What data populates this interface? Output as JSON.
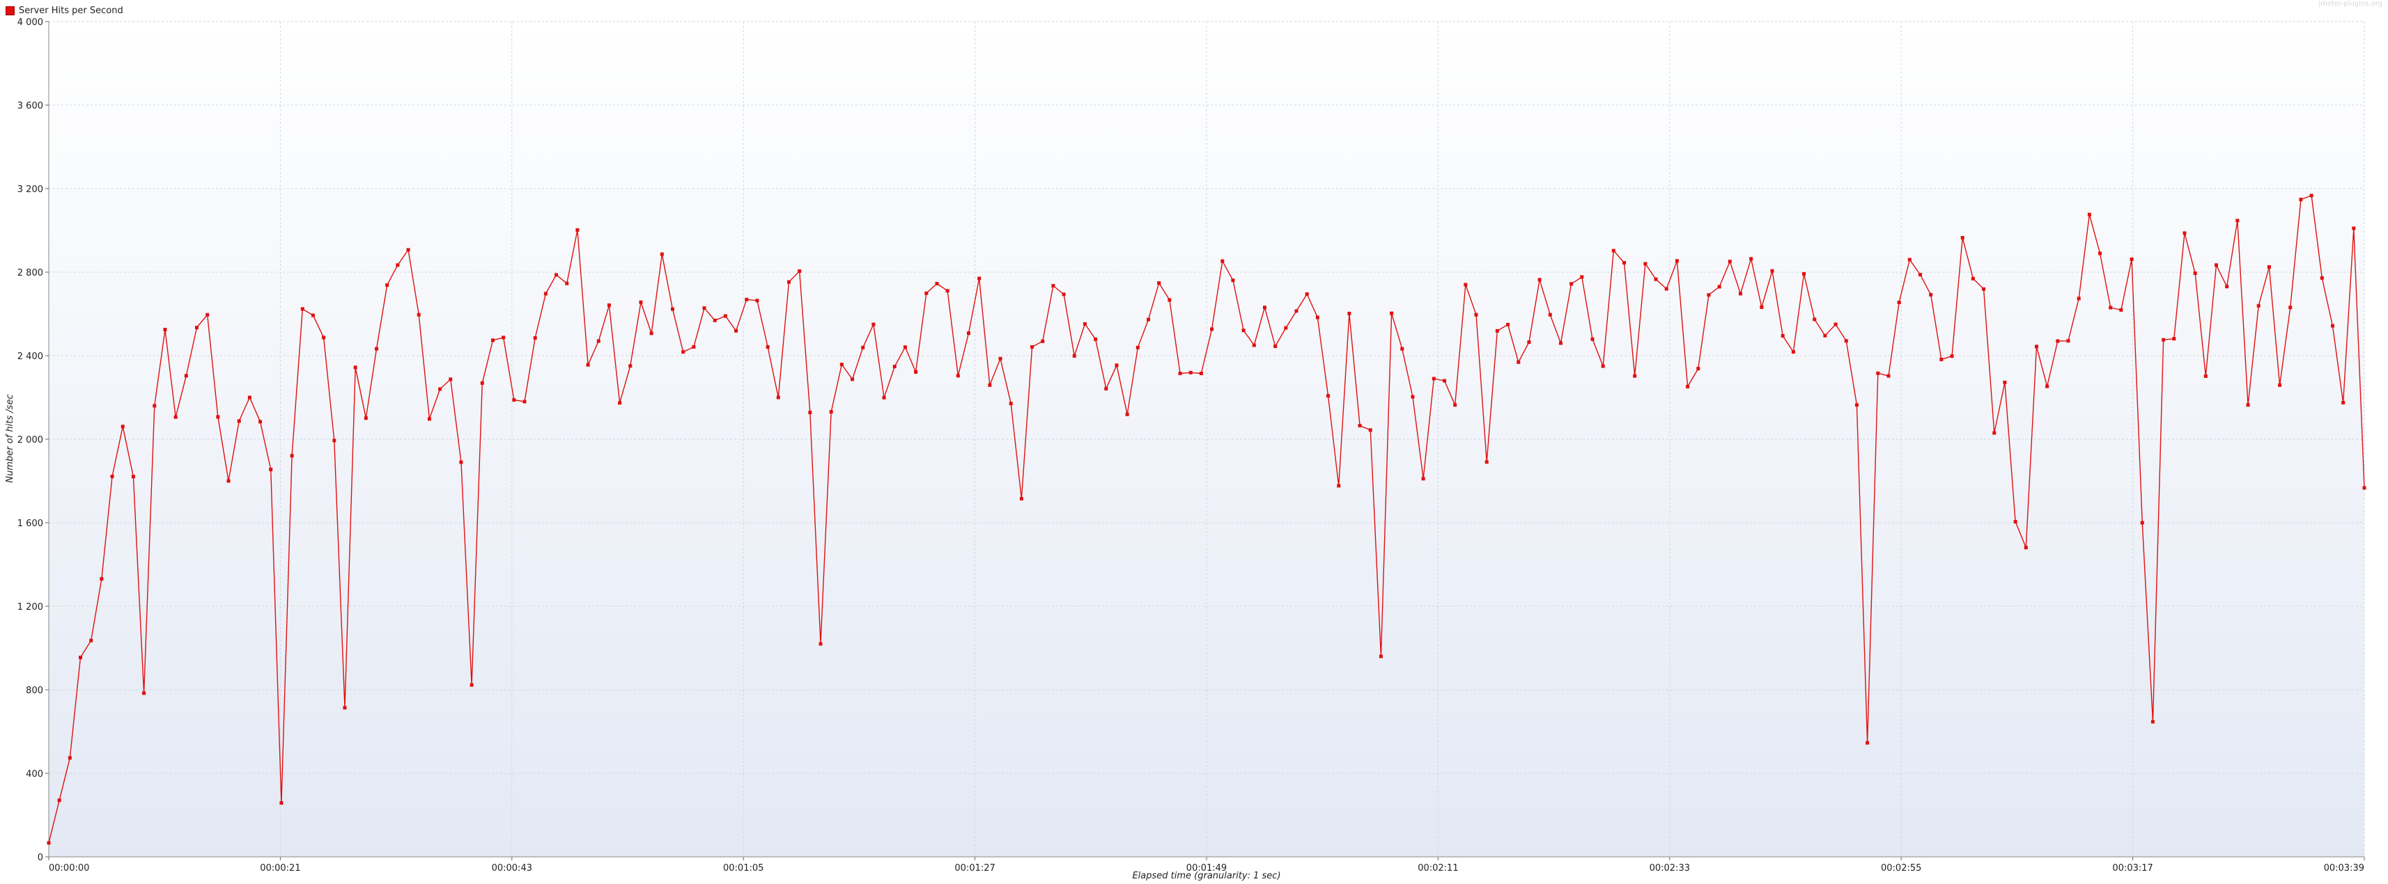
{
  "watermark": "jmeter-plugins.org",
  "chart_data": {
    "type": "line",
    "legend": {
      "placement": "top-left",
      "label": "Server Hits per Second"
    },
    "colors": {
      "series": "#e01010",
      "grid": "#d0d6e0",
      "background_top": "#ffffff",
      "background_bottom": "#e3e9f4"
    },
    "xlabel": "Elapsed time (granularity: 1 sec)",
    "ylabel": "Number of hits /sec",
    "xlim": [
      0,
      219
    ],
    "ylim": [
      0,
      4000
    ],
    "grid": true,
    "y_ticks": [
      {
        "value": 0,
        "label": "0"
      },
      {
        "value": 400,
        "label": "400"
      },
      {
        "value": 800,
        "label": "800"
      },
      {
        "value": 1200,
        "label": "1 200"
      },
      {
        "value": 1600,
        "label": "1 600"
      },
      {
        "value": 2000,
        "label": "2 000"
      },
      {
        "value": 2400,
        "label": "2 400"
      },
      {
        "value": 2800,
        "label": "2 800"
      },
      {
        "value": 3200,
        "label": "3 200"
      },
      {
        "value": 3600,
        "label": "3 600"
      },
      {
        "value": 4000,
        "label": "4 000"
      }
    ],
    "x_ticks": [
      {
        "value": 0,
        "label": "00:00:00"
      },
      {
        "value": 21.9,
        "label": "00:00:21"
      },
      {
        "value": 43.8,
        "label": "00:00:43"
      },
      {
        "value": 65.7,
        "label": "00:01:05"
      },
      {
        "value": 87.6,
        "label": "00:01:27"
      },
      {
        "value": 109.5,
        "label": "00:01:49"
      },
      {
        "value": 131.4,
        "label": "00:02:11"
      },
      {
        "value": 153.3,
        "label": "00:02:33"
      },
      {
        "value": 175.2,
        "label": "00:02:55"
      },
      {
        "value": 197.1,
        "label": "00:03:17"
      },
      {
        "value": 219,
        "label": "00:03:39"
      }
    ],
    "series": [
      {
        "name": "Server Hits per Second",
        "values": [
          67,
          271,
          474,
          955,
          1036,
          1331,
          1822,
          2061,
          1821,
          784,
          2160,
          2525,
          2106,
          2304,
          2535,
          2596,
          2107,
          1800,
          2087,
          2200,
          2084,
          1855,
          258,
          1921,
          2624,
          2593,
          2487,
          1994,
          714,
          2344,
          2101,
          2433,
          2738,
          2834,
          2907,
          2596,
          2097,
          2240,
          2287,
          1890,
          823,
          2269,
          2474,
          2487,
          2188,
          2180,
          2485,
          2697,
          2787,
          2746,
          3002,
          2356,
          2470,
          2642,
          2174,
          2351,
          2656,
          2507,
          2886,
          2623,
          2418,
          2442,
          2628,
          2569,
          2590,
          2519,
          2669,
          2664,
          2442,
          2200,
          2753,
          2805,
          2128,
          1020,
          2131,
          2358,
          2287,
          2439,
          2550,
          2199,
          2348,
          2441,
          2322,
          2699,
          2745,
          2711,
          2304,
          2508,
          2770,
          2259,
          2386,
          2171,
          1715,
          2442,
          2469,
          2735,
          2694,
          2399,
          2552,
          2479,
          2242,
          2354,
          2119,
          2439,
          2573,
          2748,
          2667,
          2315,
          2319,
          2315,
          2527,
          2853,
          2761,
          2521,
          2450,
          2631,
          2445,
          2533,
          2614,
          2695,
          2583,
          2208,
          1777,
          2602,
          2065,
          2044,
          960,
          2603,
          2433,
          2203,
          1811,
          2290,
          2280,
          2164,
          2740,
          2596,
          1891,
          2519,
          2549,
          2369,
          2465,
          2764,
          2596,
          2460,
          2744,
          2777,
          2479,
          2350,
          2903,
          2845,
          2303,
          2840,
          2766,
          2720,
          2854,
          2252,
          2338,
          2691,
          2730,
          2851,
          2697,
          2864,
          2632,
          2806,
          2495,
          2418,
          2792,
          2574,
          2496,
          2550,
          2471,
          2164,
          546,
          2316,
          2303,
          2655,
          2860,
          2788,
          2692,
          2382,
          2398,
          2965,
          2769,
          2719,
          2030,
          2272,
          1605,
          1481,
          2444,
          2253,
          2470,
          2471,
          2674,
          3076,
          2890,
          2630,
          2619,
          2862,
          1600,
          647,
          2476,
          2481,
          2987,
          2795,
          2302,
          2834,
          2731,
          3047,
          2164,
          2639,
          2825,
          2259,
          2631,
          3148,
          3167,
          2772,
          2543,
          2175,
          3010,
          1767
        ]
      }
    ]
  }
}
